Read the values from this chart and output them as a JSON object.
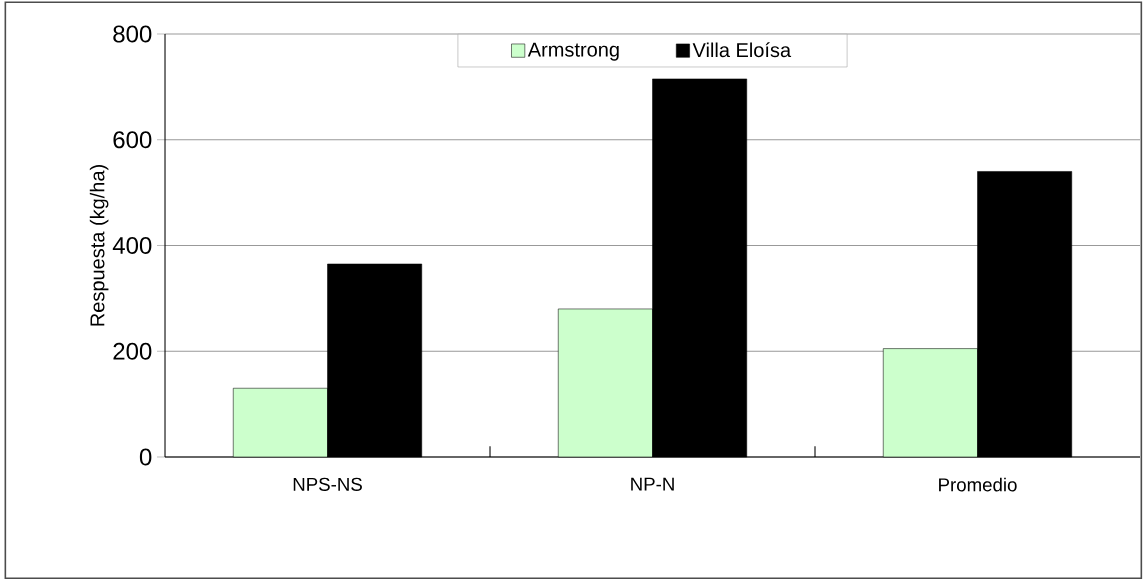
{
  "chart_data": {
    "type": "bar",
    "ylabel": "Respuesta (kg/ha)",
    "categories": [
      "NPS-NS",
      "NP-N",
      "Promedio"
    ],
    "series": [
      {
        "name": "Armstrong",
        "color": "#ccffcc",
        "values": [
          130,
          280,
          205
        ]
      },
      {
        "name": "Villa  Eloísa",
        "color": "#000000",
        "values": [
          365,
          715,
          540
        ]
      }
    ],
    "ylim": [
      0,
      800
    ],
    "yticks": [
      0,
      200,
      400,
      600,
      800
    ],
    "grid": "y",
    "legend": "top"
  }
}
